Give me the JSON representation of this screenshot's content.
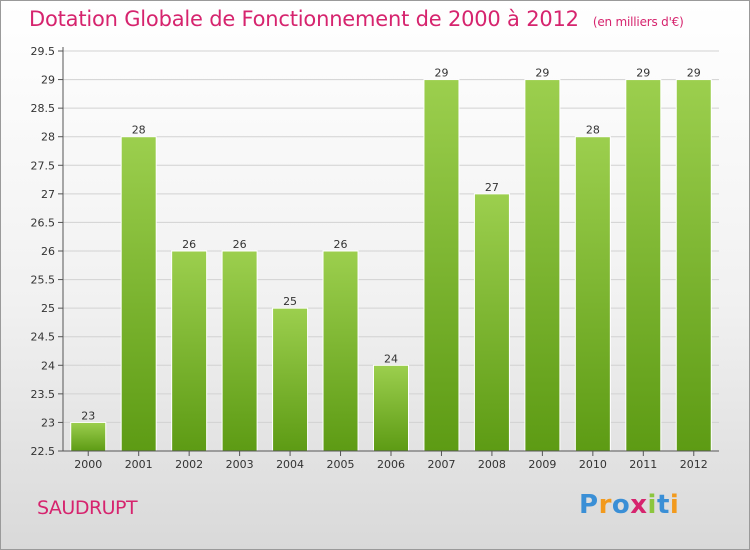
{
  "chart_data": {
    "type": "bar",
    "title": "Dotation Globale de Fonctionnement de 2000 à 2012",
    "unit": "(en milliers d'€)",
    "categories": [
      "2000",
      "2001",
      "2002",
      "2003",
      "2004",
      "2005",
      "2006",
      "2007",
      "2008",
      "2009",
      "2010",
      "2011",
      "2012"
    ],
    "values": [
      23,
      28,
      26,
      26,
      25,
      26,
      24,
      29,
      27,
      29,
      28,
      29,
      29
    ],
    "ylim": [
      22.5,
      29.5
    ],
    "yticks": [
      "22.5",
      "23",
      "23.5",
      "24",
      "24.5",
      "25",
      "25.5",
      "26",
      "26.5",
      "27",
      "27.5",
      "28",
      "28.5",
      "29",
      "29.5"
    ],
    "grid": true,
    "bar_color_top": "#9ccf4e",
    "bar_color_bottom": "#5d9b14"
  },
  "commune": "SAUDRUPT",
  "logo": {
    "letters": [
      "P",
      "r",
      "o",
      "x",
      "i",
      "t",
      "i"
    ],
    "colors": [
      "#3a8fd6",
      "#f29a1d",
      "#3a8fd6",
      "#d6246e",
      "#8cc63e",
      "#3a8fd6",
      "#f29a1d"
    ]
  }
}
